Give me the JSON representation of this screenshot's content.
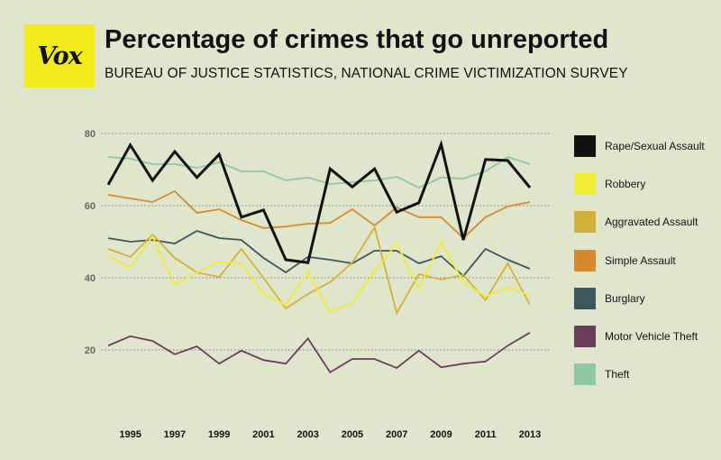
{
  "header": {
    "logo_text": "Vox",
    "title": "Percentage of crimes that go unreported",
    "subtitle": "BUREAU OF JUSTICE STATISTICS, NATIONAL CRIME VICTIMIZATION SURVEY"
  },
  "colors": {
    "background": "#e0e6cc",
    "logo": "#f3ea19",
    "grid": "#777777"
  },
  "chart_data": {
    "type": "line",
    "title": "Percentage of crimes that go unreported",
    "subtitle": "BUREAU OF JUSTICE STATISTICS, NATIONAL CRIME VICTIMIZATION SURVEY",
    "xlabel": "",
    "ylabel": "",
    "ylim": [
      0,
      80
    ],
    "yticks": [
      20,
      40,
      60,
      80
    ],
    "x": [
      1994,
      1995,
      1996,
      1997,
      1998,
      1999,
      2000,
      2001,
      2002,
      2003,
      2004,
      2005,
      2006,
      2007,
      2008,
      2009,
      2010,
      2011,
      2012,
      2013
    ],
    "xtick_labels": [
      "1995",
      "1997",
      "1999",
      "2001",
      "2003",
      "2005",
      "2007",
      "2009",
      "2011",
      "2013"
    ],
    "grid": "horizontal dotted",
    "legend_position": "right",
    "series": [
      {
        "name": "Theft",
        "color": "#8fc7a2",
        "values": [
          73.5,
          73,
          71.5,
          71.5,
          70.5,
          72,
          69.5,
          69.5,
          67,
          67.8,
          66,
          66.5,
          67,
          68,
          65,
          67.8,
          67.5,
          69.5,
          73.5,
          71.5
        ]
      },
      {
        "name": "Motor Vehicle Theft",
        "color": "#6b3d5e",
        "values": [
          21.2,
          23.8,
          22.5,
          18.8,
          21,
          16.2,
          19.8,
          17.2,
          16.2,
          23.2,
          13.8,
          17.5,
          17.5,
          15,
          19.8,
          15.2,
          16.2,
          16.8,
          21.2,
          24.8
        ]
      },
      {
        "name": "Burglary",
        "color": "#3d5761",
        "values": [
          51,
          50,
          50.5,
          49.5,
          53,
          51,
          50.5,
          45.5,
          41.5,
          45.8,
          45,
          44,
          47.5,
          47.5,
          44,
          46,
          40.5,
          48,
          45,
          42.5
        ]
      },
      {
        "name": "Simple Assault",
        "color": "#d68a30",
        "values": [
          63,
          62,
          61,
          64,
          58,
          59,
          56,
          53.8,
          54.2,
          55,
          55.2,
          59,
          54.5,
          59.5,
          56.8,
          56.8,
          51,
          56.8,
          59.8,
          61
        ]
      },
      {
        "name": "Aggravated Assault",
        "color": "#d2b03a",
        "values": [
          48,
          45.8,
          52,
          45.5,
          41.5,
          40.2,
          48,
          40,
          31.5,
          35.5,
          38.8,
          44.2,
          54,
          30.2,
          41,
          39.5,
          40.8,
          33.8,
          44,
          32.5
        ]
      },
      {
        "name": "Robbery",
        "color": "#f2ec36",
        "values": [
          46,
          42.8,
          51.5,
          38,
          41.5,
          44.5,
          44,
          35.5,
          32.5,
          41.5,
          30.5,
          33,
          41.8,
          49.5,
          37,
          49.8,
          38.8,
          34.8,
          37.2,
          35.2
        ]
      },
      {
        "name": "Rape/Sexual Assault",
        "color": "#111111",
        "values": [
          65.8,
          76.8,
          67,
          75,
          67.8,
          74.2,
          56.8,
          58.8,
          45,
          44.2,
          70.2,
          65.2,
          70.2,
          58.2,
          60.8,
          77,
          50.5,
          72.8,
          72.5,
          65
        ]
      }
    ]
  },
  "legend": [
    {
      "label": "Rape/Sexual Assault",
      "color": "#111111"
    },
    {
      "label": "Robbery",
      "color": "#f2ec36"
    },
    {
      "label": "Aggravated Assault",
      "color": "#d2b03a"
    },
    {
      "label": "Simple Assault",
      "color": "#d68a30"
    },
    {
      "label": "Burglary",
      "color": "#3d5761"
    },
    {
      "label": "Motor Vehicle Theft",
      "color": "#6b3d5e"
    },
    {
      "label": "Theft",
      "color": "#8fc7a2"
    }
  ]
}
